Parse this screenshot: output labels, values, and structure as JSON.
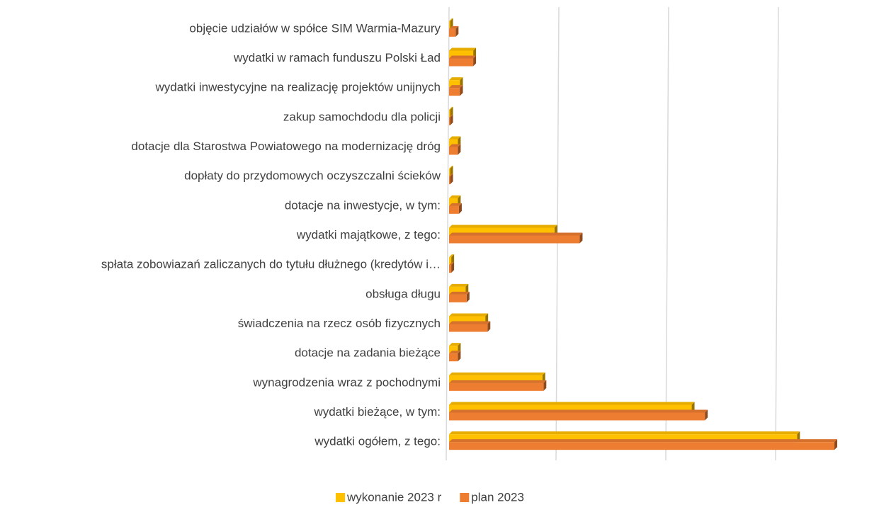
{
  "chart_data": {
    "type": "bar3d_horizontal",
    "categories": [
      "objęcie udziałów w spółce SIM Warmia-Mazury",
      "wydatki w ramach funduszu Polski Ład",
      "wydatki inwestycyjne na realizację projektów unijnych",
      "zakup samochdodu dla policji",
      "dotacje dla Starostwa Powiatowego na modernizację dróg",
      "dopłaty do przydomowych oczyszczalni ścieków",
      "dotacje na inwestycje, w tym:",
      "wydatki majątkowe, z tego:",
      "spłata zobowiazań zaliczanych do tytułu dłużnego (kredytów i…",
      "obsługa długu",
      "świadczenia na rzecz osób fizycznych",
      "dotacje na zadania bieżące",
      "wynagrodzenia wraz z pochodnymi",
      "wydatki bieżące, w tym:",
      "wydatki ogółem, z tego:"
    ],
    "series": [
      {
        "name": "wykonanie 2023 r",
        "color": "#FFC000",
        "values": [
          0.1,
          2.2,
          1.0,
          0.1,
          0.8,
          0.1,
          0.8,
          9.6,
          0.2,
          1.5,
          3.3,
          0.8,
          8.5,
          22.1,
          31.7
        ]
      },
      {
        "name": "plan 2023",
        "color": "#ED7D31",
        "values": [
          0.6,
          2.2,
          1.0,
          0.1,
          0.8,
          0.1,
          0.9,
          11.9,
          0.2,
          1.6,
          3.5,
          0.8,
          8.6,
          23.3,
          35.1
        ]
      }
    ],
    "xlim": [
      0,
      40
    ],
    "xticks": [
      0,
      10,
      20,
      30,
      40
    ],
    "grid": true,
    "legend": "bottom"
  }
}
